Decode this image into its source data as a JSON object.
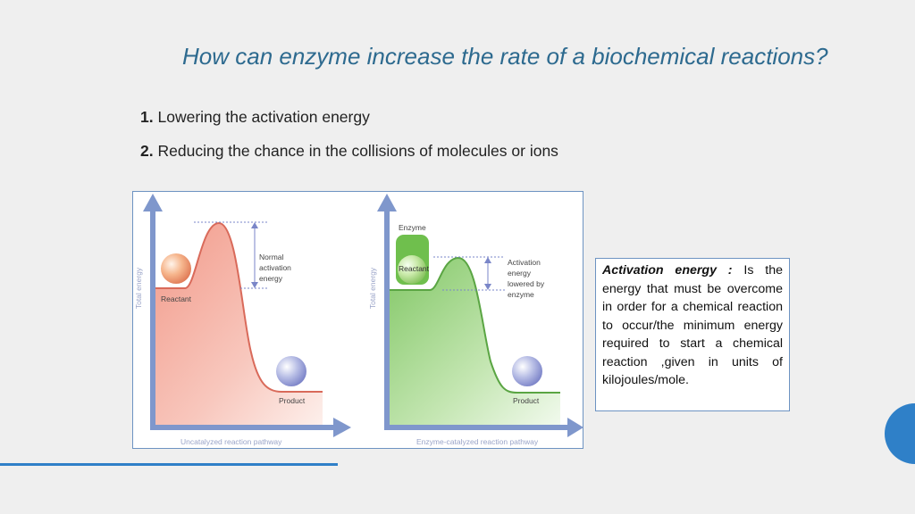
{
  "title": "How can enzyme increase the rate of a biochemical reactions?",
  "points": [
    {
      "number": "1.",
      "text": "Lowering the activation energy"
    },
    {
      "number": "2.",
      "text": "Reducing the chance in the collisions of molecules or ions"
    }
  ],
  "diagram": {
    "left": {
      "y_axis_label": "Total energy",
      "x_axis_label": "Uncatalyzed reaction pathway",
      "reactant_label": "Reactant",
      "product_label": "Product",
      "annotation_lines": [
        "Normal",
        "activation",
        "energy"
      ]
    },
    "right": {
      "y_axis_label": "Total energy",
      "x_axis_label": "Enzyme-catalyzed reaction pathway",
      "enzyme_label": "Enzyme",
      "reactant_label": "Reactant",
      "product_label": "Product",
      "annotation_lines": [
        "Activation",
        "energy",
        "lowered by",
        "enzyme"
      ]
    }
  },
  "definition": {
    "term": "Activation energy :",
    "text": " Is the energy that must be overcome in order for a chemical reaction to occur/the minimum energy required to start a chemical reaction ,given in units of kilojoules/mole."
  },
  "colors": {
    "title": "#2d6a8f",
    "accent": "#2f80c8",
    "axis": "#7f97cc",
    "uncatalyzed_fill": "#f4a89a",
    "catalyzed_fill": "#8fce73"
  }
}
